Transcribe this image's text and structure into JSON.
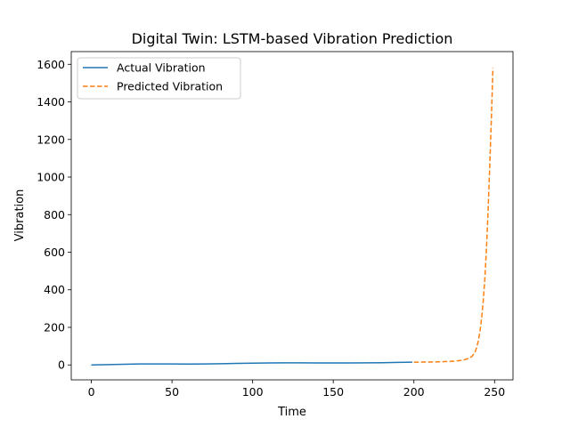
{
  "chart_data": {
    "type": "line",
    "title": "Digital Twin: LSTM-based Vibration Prediction",
    "xlabel": "Time",
    "ylabel": "Vibration",
    "xlim": [
      -12.45,
      261.45
    ],
    "ylim": [
      -79.4,
      1667.6
    ],
    "xticks": [
      0,
      50,
      100,
      150,
      200,
      250
    ],
    "yticks": [
      0,
      200,
      400,
      600,
      800,
      1000,
      1200,
      1400,
      1600
    ],
    "grid": false,
    "legend_position": "top-left",
    "series": [
      {
        "name": "Actual Vibration",
        "color": "#1f77b4",
        "style": "solid",
        "x": [
          0,
          10,
          20,
          30,
          40,
          50,
          60,
          70,
          80,
          90,
          100,
          110,
          120,
          130,
          140,
          150,
          160,
          170,
          180,
          190,
          199
        ],
        "y": [
          0.0,
          1.5,
          3.5,
          5.0,
          5.5,
          5.0,
          4.8,
          5.5,
          6.5,
          8.0,
          9.5,
          10.5,
          11.0,
          11.0,
          10.8,
          10.5,
          10.5,
          11.0,
          12.0,
          13.5,
          14.5
        ]
      },
      {
        "name": "Predicted Vibration",
        "color": "#ff7f0e",
        "style": "dashed",
        "x": [
          200,
          205,
          210,
          215,
          220,
          225,
          228,
          231,
          234,
          236,
          238,
          239,
          240,
          241,
          242,
          243,
          244,
          245,
          246,
          247,
          248,
          249
        ],
        "y": [
          14.5,
          15.0,
          15.5,
          16.5,
          18.0,
          20.0,
          23.0,
          27.0,
          35.0,
          45.0,
          70.0,
          95.0,
          130.0,
          180.0,
          250.0,
          340.0,
          460.0,
          620.0,
          820.0,
          1050.0,
          1300.0,
          1580.0
        ]
      }
    ]
  }
}
